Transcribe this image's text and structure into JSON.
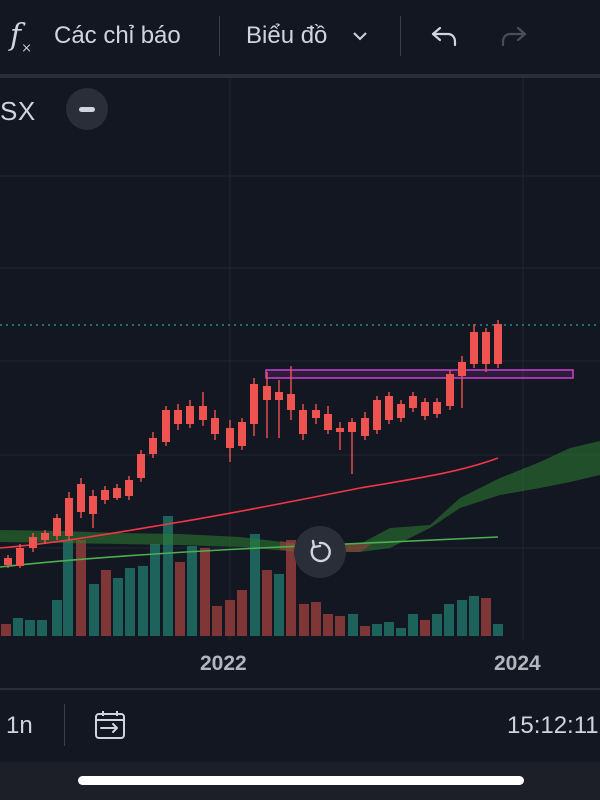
{
  "toolbar": {
    "indicators_label": "Các chỉ báo",
    "chart_type_label": "Biểu đồ",
    "icons": [
      "fx-icon",
      "chevron-down-icon",
      "undo-icon",
      "redo-icon"
    ]
  },
  "symbol": {
    "label": "SX"
  },
  "x_axis": {
    "tick_labels": [
      "2022",
      "2024"
    ]
  },
  "bottom_bar": {
    "interval": "1n",
    "time": "15:12:11"
  },
  "colors": {
    "background": "#131722",
    "up": "#26a69a",
    "down": "#ef5350",
    "ma_fast": "#f23645",
    "ma_slow": "#4caf50",
    "cloud": "#2e7d32",
    "zone": "#c040c8",
    "price_line": "#26a69a"
  }
}
